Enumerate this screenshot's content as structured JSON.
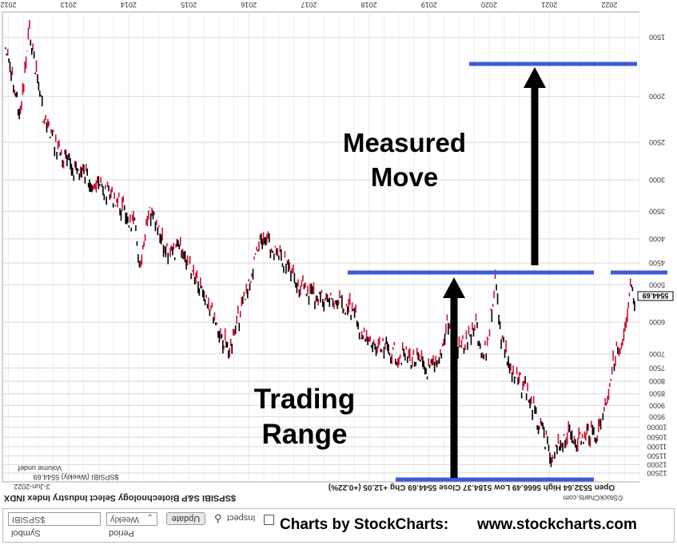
{
  "chart_data": {
    "type": "line",
    "title": "$SPSIBI S&P Biotechnology Select Industry Index INDX",
    "subtitle": "3-Jun-2022",
    "legend_label": "$SPSIBI (Weekly) 5544.69",
    "volume_label": "Volume undef",
    "ohlc": "Open 5532.64  High 5666.49  Low 5184.37  Close 5544.69  Chg +12.05 (+0.22%)",
    "source": "©StockCharts.com",
    "last_value_label": "5544.69",
    "x_ticks": [
      "2012",
      "2013",
      "2014",
      "2015",
      "2016",
      "2017",
      "2018",
      "2019",
      "2020",
      "2021",
      "2022"
    ],
    "y_ticks": [
      "1500",
      "2000",
      "2500",
      "3000",
      "3500",
      "4000",
      "4500",
      "5000",
      "6000",
      "7000",
      "7500",
      "8000",
      "8500",
      "9000",
      "9500",
      "10000",
      "10500",
      "11000",
      "11500",
      "12000",
      "12500"
    ],
    "series": [
      {
        "values": [
          [
            2011.95,
            1580
          ],
          [
            2012.2,
            2200
          ],
          [
            2012.35,
            1450
          ],
          [
            2012.6,
            2250
          ],
          [
            2012.9,
            2700
          ],
          [
            2013.2,
            2900
          ],
          [
            2013.5,
            3100
          ],
          [
            2013.8,
            3300
          ],
          [
            2014.1,
            3800
          ],
          [
            2014.2,
            4600
          ],
          [
            2014.35,
            3500
          ],
          [
            2014.6,
            4200
          ],
          [
            2014.9,
            4300
          ],
          [
            2015.1,
            4700
          ],
          [
            2015.35,
            5500
          ],
          [
            2015.55,
            6500
          ],
          [
            2015.7,
            6900
          ],
          [
            2015.8,
            6100
          ],
          [
            2016.0,
            5000
          ],
          [
            2016.05,
            4800
          ],
          [
            2016.15,
            4100
          ],
          [
            2016.3,
            4100
          ],
          [
            2016.5,
            4400
          ],
          [
            2016.7,
            4700
          ],
          [
            2016.9,
            5100
          ],
          [
            2017.1,
            5250
          ],
          [
            2017.4,
            5400
          ],
          [
            2017.7,
            5600
          ],
          [
            2017.9,
            6500
          ],
          [
            2018.1,
            6800
          ],
          [
            2018.4,
            7000
          ],
          [
            2018.6,
            7100
          ],
          [
            2018.8,
            7200
          ],
          [
            2018.95,
            7600
          ],
          [
            2019.15,
            7500
          ],
          [
            2019.3,
            6000
          ],
          [
            2019.5,
            6800
          ],
          [
            2019.7,
            6400
          ],
          [
            2019.8,
            6200
          ],
          [
            2019.85,
            7100
          ],
          [
            2019.95,
            7000
          ],
          [
            2020.1,
            4900
          ],
          [
            2020.2,
            6400
          ],
          [
            2020.4,
            7900
          ],
          [
            2020.6,
            8200
          ],
          [
            2020.8,
            9700
          ],
          [
            2020.95,
            10800
          ],
          [
            2021.05,
            12100
          ],
          [
            2021.15,
            11000
          ],
          [
            2021.3,
            10400
          ],
          [
            2021.55,
            10600
          ],
          [
            2021.7,
            10200
          ],
          [
            2021.8,
            10400
          ],
          [
            2021.95,
            8700
          ],
          [
            2022.1,
            7000
          ],
          [
            2022.2,
            6900
          ],
          [
            2022.3,
            6000
          ],
          [
            2022.35,
            5000
          ],
          [
            2022.42,
            5545
          ]
        ]
      }
    ],
    "y_scale": "log",
    "reversed_y": true,
    "x_range": [
      2011.9,
      2022.5
    ],
    "annotations": [
      {
        "text_lines": [
          "Measured",
          "Move"
        ]
      },
      {
        "text_lines": [
          "Trading",
          "Range"
        ]
      }
    ],
    "colors": {
      "up": "#000000",
      "down": "#cc1133",
      "annotation_line": "#3b5bdb",
      "grid": "#d8d8d8"
    }
  },
  "controls": {
    "symbol_value": "$SPSIBI",
    "symbol_label": "Symbol",
    "period_value": "Weekly",
    "period_label": "Period",
    "update_label": "Update",
    "inspect_label": "Inspect"
  },
  "branding": {
    "left": "Charts by StockCharts:",
    "right": "www.stockcharts.com"
  }
}
